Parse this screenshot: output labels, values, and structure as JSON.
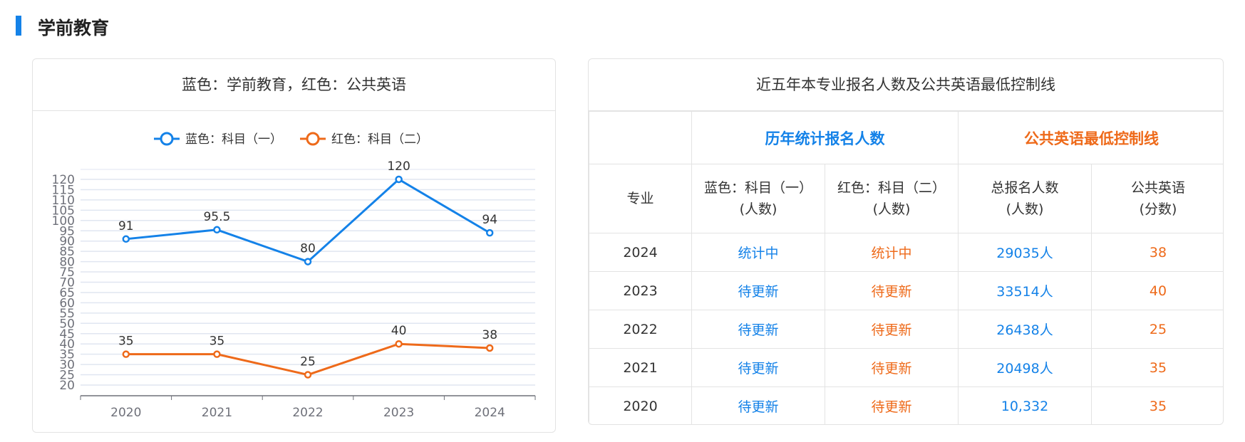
{
  "section_title": "学前教育",
  "chart_card_title": "蓝色：学前教育，红色：公共英语",
  "colors": {
    "blue": "#1482e8",
    "orange": "#ee6a1a"
  },
  "chart_data": {
    "type": "line",
    "categories": [
      "2020",
      "2021",
      "2022",
      "2023",
      "2024"
    ],
    "series": [
      {
        "name": "蓝色：科目（一）",
        "color": "#1482e8",
        "values": [
          91,
          95.5,
          80,
          120,
          94
        ]
      },
      {
        "name": "红色：科目（二）",
        "color": "#ee6a1a",
        "values": [
          35,
          35,
          25,
          40,
          38
        ]
      }
    ],
    "ylim": [
      20,
      120
    ],
    "yticks": [
      20,
      25,
      30,
      35,
      40,
      45,
      50,
      55,
      60,
      65,
      70,
      75,
      80,
      85,
      90,
      95,
      100,
      105,
      110,
      115,
      120
    ],
    "grid": true,
    "legend": "top-center",
    "data_labels": [
      "91",
      "95.5",
      "80",
      "120",
      "94",
      "35",
      "35",
      "25",
      "40",
      "38"
    ]
  },
  "table": {
    "title": "近五年本专业报名人数及公共英语最低控制线",
    "group_blue": "历年统计报名人数",
    "group_orange": "公共英语最低控制线",
    "headers": [
      [
        "专业",
        ""
      ],
      [
        "蓝色：科目（一）",
        "(人数)"
      ],
      [
        "红色：科目（二）",
        "(人数)"
      ],
      [
        "总报名人数",
        "(人数)"
      ],
      [
        "公共英语",
        "(分数)"
      ]
    ],
    "rows": [
      [
        "2024",
        "统计中",
        "统计中",
        "29035人",
        "38"
      ],
      [
        "2023",
        "待更新",
        "待更新",
        "33514人",
        "40"
      ],
      [
        "2022",
        "待更新",
        "待更新",
        "26438人",
        "25"
      ],
      [
        "2021",
        "待更新",
        "待更新",
        "20498人",
        "35"
      ],
      [
        "2020",
        "待更新",
        "待更新",
        "10,332",
        "35"
      ]
    ]
  }
}
